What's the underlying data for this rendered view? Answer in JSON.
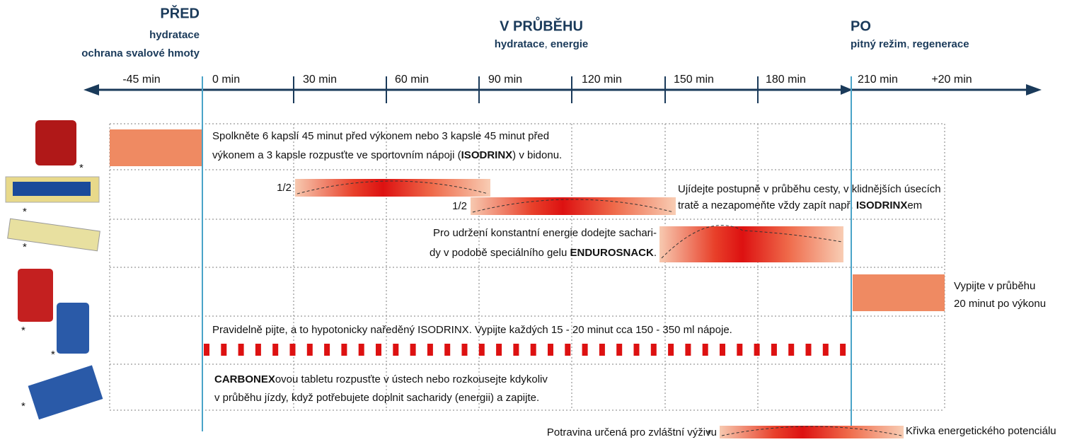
{
  "phases": [
    {
      "title": "PŘED",
      "subtitle": [
        "hydratace",
        "ochrana svalové hmoty"
      ]
    },
    {
      "title": "V PRŮBĚHU",
      "subtitle": [
        "hydratace",
        ", ",
        "energie"
      ]
    },
    {
      "title": "PO",
      "subtitle": [
        "pitný režim",
        ", ",
        "regenerace"
      ]
    }
  ],
  "timeline": [
    "-45 min",
    "0 min",
    "30 min",
    "60 min",
    "90 min",
    "120 min",
    "150 min",
    "180 min",
    "210 min",
    "+20 min"
  ],
  "rows": [
    {
      "lines": [
        [
          "Spolkněte 6 kapslí 45 minut před výkonem nebo 3 kapsle 45 minut před"
        ],
        [
          "výkonem a 3 kapsle rozpusťte ve sportovním nápoji (",
          "ISODRINX",
          ") v bidonu."
        ]
      ]
    },
    {
      "halves": [
        "1/2",
        "1/2"
      ],
      "lines": [
        [
          "Ujídejte postupně v průběhu cesty, v klidnějších úsecích"
        ],
        [
          "tratě a nezapomeňte vždy zapít např. ",
          "ISODRINX",
          "em"
        ]
      ]
    },
    {
      "lines": [
        [
          "Pro udržení konstantní energie dodejte sachari-"
        ],
        [
          "dy v podobě speciálního gelu ",
          "ENDUROSNACK",
          "."
        ]
      ]
    },
    {
      "lines": [
        [
          "Vypijte v průběhu"
        ],
        [
          "20 minut po výkonu"
        ]
      ]
    },
    {
      "lines": [
        [
          "Pravidelně pijte, a to hypotonicky naředěný ISODRINX. Vypijte každých 15 - 20 minut cca 150 - 350 ml nápoje."
        ]
      ]
    },
    {
      "lines": [
        [
          "CARBONEX",
          "ovou tabletu rozpusťte v ústech nebo rozkousejte kdykoliv"
        ],
        [
          "v průběhu jízdy, když potřebujete doplnit sacharidy (energii) a zapijte."
        ]
      ]
    }
  ],
  "legend": {
    "marker": "*",
    "note": "Potravina určená pro zvláštní výživu",
    "curve": "Křivka energetického potenciálu"
  }
}
